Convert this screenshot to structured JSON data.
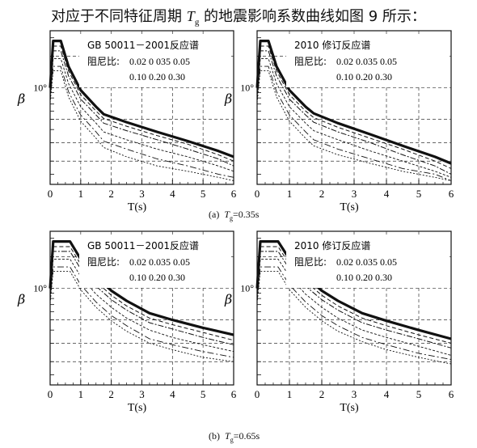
{
  "page": {
    "title_prefix": "对应于不同特征周期 ",
    "title_symbol": "T",
    "title_subscript": "g",
    "title_suffix": " 的地震影响系数曲线如图 9 所示："
  },
  "captions": [
    {
      "label": "(a)",
      "symbol": "T",
      "subscript": "g",
      "value": "=0.35s"
    },
    {
      "label": "(b)",
      "symbol": "T",
      "subscript": "g",
      "value": "=0.65s"
    }
  ],
  "chart_data": [
    {
      "type": "line",
      "legend_title": "GB 50011－2001反应谱",
      "legend_damping_label": "阻尼比:",
      "legend_damping_row1": "0.02 0 035 0.05",
      "legend_damping_row2": "0.10 0.20 0.30",
      "xlabel": "T(s)",
      "ylabel": "β",
      "y_tick_label": "10°",
      "x_ticks": [
        "0",
        "1",
        "2",
        "3",
        "4",
        "5",
        "6"
      ],
      "xlim": [
        0,
        6
      ],
      "tg": 0.35,
      "grid": true,
      "log_y": true,
      "legend_position": "top-right",
      "series": [
        {
          "damping": 0.02,
          "x": [
            0,
            0.1,
            0.35,
            0.6,
            1,
            1.5,
            1.75,
            2.5,
            3.5,
            4.5,
            5.5,
            6
          ],
          "y": [
            1.0,
            2.8,
            2.8,
            1.6,
            0.95,
            0.66,
            0.56,
            0.47,
            0.38,
            0.31,
            0.25,
            0.22
          ]
        },
        {
          "damping": 0.035,
          "x": [
            0,
            0.1,
            0.35,
            0.6,
            1,
            1.5,
            1.75,
            2.5,
            3.5,
            4.5,
            5.5,
            6
          ],
          "y": [
            0.92,
            2.5,
            2.5,
            1.45,
            0.86,
            0.6,
            0.51,
            0.43,
            0.35,
            0.29,
            0.23,
            0.2
          ]
        },
        {
          "damping": 0.05,
          "x": [
            0,
            0.1,
            0.35,
            0.6,
            1,
            1.5,
            1.75,
            2.5,
            3.5,
            4.5,
            5.5,
            6
          ],
          "y": [
            0.85,
            2.25,
            2.25,
            1.3,
            0.78,
            0.55,
            0.46,
            0.39,
            0.32,
            0.26,
            0.21,
            0.18
          ]
        },
        {
          "damping": 0.1,
          "x": [
            0,
            0.1,
            0.35,
            0.6,
            1,
            1.5,
            1.75,
            2.5,
            3.5,
            4.5,
            5.5,
            6
          ],
          "y": [
            0.8,
            1.9,
            1.9,
            1.1,
            0.66,
            0.46,
            0.38,
            0.32,
            0.26,
            0.22,
            0.18,
            0.16
          ]
        },
        {
          "damping": 0.2,
          "x": [
            0,
            0.1,
            0.35,
            0.6,
            1,
            1.5,
            1.75,
            2.5,
            3.5,
            4.5,
            5.5,
            6
          ],
          "y": [
            0.75,
            1.6,
            1.6,
            0.92,
            0.55,
            0.38,
            0.31,
            0.26,
            0.21,
            0.18,
            0.15,
            0.14
          ]
        },
        {
          "damping": 0.3,
          "x": [
            0,
            0.1,
            0.35,
            0.6,
            1,
            1.5,
            1.75,
            2.5,
            3.5,
            4.5,
            5.5,
            6
          ],
          "y": [
            0.72,
            1.45,
            1.45,
            0.82,
            0.48,
            0.33,
            0.27,
            0.22,
            0.18,
            0.16,
            0.14,
            0.13
          ]
        }
      ]
    },
    {
      "type": "line",
      "legend_title": "2010 修订反应谱",
      "legend_damping_label": "阻尼比:",
      "legend_damping_row1": "0.02 0.035 0.05",
      "legend_damping_row2": "0.10 0.20 0.30",
      "xlabel": "T(s)",
      "ylabel": "β",
      "y_tick_label": "10°",
      "x_ticks": [
        "0",
        "1",
        "2",
        "3",
        "4",
        "5",
        "6"
      ],
      "xlim": [
        0,
        6
      ],
      "tg": 0.35,
      "grid": true,
      "log_y": true,
      "legend_position": "top-right",
      "series": [
        {
          "damping": 0.02,
          "x": [
            0,
            0.1,
            0.35,
            0.6,
            1,
            1.5,
            1.75,
            2.5,
            3.5,
            4.5,
            5.5,
            6
          ],
          "y": [
            1.0,
            2.8,
            2.8,
            1.6,
            0.95,
            0.66,
            0.57,
            0.46,
            0.36,
            0.28,
            0.22,
            0.19
          ]
        },
        {
          "damping": 0.035,
          "x": [
            0,
            0.1,
            0.35,
            0.6,
            1,
            1.5,
            1.75,
            2.5,
            3.5,
            4.5,
            5.5,
            6
          ],
          "y": [
            0.92,
            2.5,
            2.5,
            1.45,
            0.86,
            0.6,
            0.52,
            0.42,
            0.33,
            0.26,
            0.2,
            0.17
          ]
        },
        {
          "damping": 0.05,
          "x": [
            0,
            0.1,
            0.35,
            0.6,
            1,
            1.5,
            1.75,
            2.5,
            3.5,
            4.5,
            5.5,
            6
          ],
          "y": [
            0.85,
            2.25,
            2.25,
            1.3,
            0.78,
            0.55,
            0.47,
            0.38,
            0.3,
            0.23,
            0.18,
            0.15
          ]
        },
        {
          "damping": 0.1,
          "x": [
            0,
            0.1,
            0.35,
            0.6,
            1,
            1.5,
            1.75,
            2.5,
            3.5,
            4.5,
            5.5,
            6
          ],
          "y": [
            0.8,
            1.9,
            1.9,
            1.1,
            0.66,
            0.46,
            0.39,
            0.32,
            0.25,
            0.2,
            0.16,
            0.14
          ]
        },
        {
          "damping": 0.2,
          "x": [
            0,
            0.1,
            0.35,
            0.6,
            1,
            1.5,
            1.75,
            2.5,
            3.5,
            4.5,
            5.5,
            6
          ],
          "y": [
            0.75,
            1.6,
            1.6,
            0.92,
            0.55,
            0.38,
            0.32,
            0.26,
            0.21,
            0.17,
            0.15,
            0.13
          ]
        },
        {
          "damping": 0.3,
          "x": [
            0,
            0.1,
            0.35,
            0.6,
            1,
            1.5,
            1.75,
            2.5,
            3.5,
            4.5,
            5.5,
            6
          ],
          "y": [
            0.72,
            1.45,
            1.45,
            0.82,
            0.48,
            0.33,
            0.28,
            0.23,
            0.19,
            0.16,
            0.14,
            0.13
          ]
        }
      ]
    },
    {
      "type": "line",
      "legend_title": "GB 50011－2001反应谱",
      "legend_damping_label": "阻尼比:",
      "legend_damping_row1": "0.02 0.035 0.05",
      "legend_damping_row2": "0.10 0.20 0.30",
      "xlabel": "T(s)",
      "ylabel": "β",
      "y_tick_label": "10°",
      "x_ticks": [
        "0",
        "1",
        "2",
        "3",
        "4",
        "5",
        "6"
      ],
      "xlim": [
        0,
        6
      ],
      "tg": 0.65,
      "grid": true,
      "log_y": true,
      "legend_position": "top-right",
      "series": [
        {
          "damping": 0.02,
          "x": [
            0,
            0.1,
            0.65,
            1,
            1.5,
            2,
            2.5,
            3.25,
            4,
            5,
            6
          ],
          "y": [
            1.0,
            2.8,
            2.8,
            1.9,
            1.3,
            0.95,
            0.76,
            0.58,
            0.5,
            0.42,
            0.36
          ]
        },
        {
          "damping": 0.035,
          "x": [
            0,
            0.1,
            0.65,
            1,
            1.5,
            2,
            2.5,
            3.25,
            4,
            5,
            6
          ],
          "y": [
            0.92,
            2.5,
            2.5,
            1.7,
            1.16,
            0.86,
            0.68,
            0.52,
            0.45,
            0.38,
            0.32
          ]
        },
        {
          "damping": 0.05,
          "x": [
            0,
            0.1,
            0.65,
            1,
            1.5,
            2,
            2.5,
            3.25,
            4,
            5,
            6
          ],
          "y": [
            0.85,
            2.25,
            2.25,
            1.53,
            1.05,
            0.78,
            0.62,
            0.47,
            0.41,
            0.34,
            0.29
          ]
        },
        {
          "damping": 0.1,
          "x": [
            0,
            0.1,
            0.65,
            1,
            1.5,
            2,
            2.5,
            3.25,
            4,
            5,
            6
          ],
          "y": [
            0.8,
            1.9,
            1.9,
            1.3,
            0.88,
            0.66,
            0.52,
            0.4,
            0.34,
            0.29,
            0.25
          ]
        },
        {
          "damping": 0.2,
          "x": [
            0,
            0.1,
            0.65,
            1,
            1.5,
            2,
            2.5,
            3.25,
            4,
            5,
            6
          ],
          "y": [
            0.75,
            1.6,
            1.6,
            1.08,
            0.74,
            0.55,
            0.44,
            0.33,
            0.29,
            0.25,
            0.22
          ]
        },
        {
          "damping": 0.3,
          "x": [
            0,
            0.1,
            0.65,
            1,
            1.5,
            2,
            2.5,
            3.25,
            4,
            5,
            6
          ],
          "y": [
            0.72,
            1.45,
            1.45,
            0.97,
            0.66,
            0.49,
            0.39,
            0.3,
            0.26,
            0.22,
            0.2
          ]
        }
      ]
    },
    {
      "type": "line",
      "legend_title": "2010 修订反应谱",
      "legend_damping_label": "阻尼比:",
      "legend_damping_row1": "0.02 0.035 0.05",
      "legend_damping_row2": "0.10 0.20 0.30",
      "xlabel": "T(s)",
      "ylabel": "β",
      "y_tick_label": "10°",
      "x_ticks": [
        "0",
        "1",
        "2",
        "3",
        "4",
        "5",
        "6"
      ],
      "xlim": [
        0,
        6
      ],
      "tg": 0.65,
      "grid": true,
      "log_y": true,
      "legend_position": "top-right",
      "series": [
        {
          "damping": 0.02,
          "x": [
            0,
            0.1,
            0.65,
            1,
            1.5,
            2,
            2.5,
            3.25,
            4,
            5,
            6
          ],
          "y": [
            1.0,
            2.8,
            2.8,
            1.9,
            1.3,
            0.95,
            0.76,
            0.58,
            0.49,
            0.4,
            0.33
          ]
        },
        {
          "damping": 0.035,
          "x": [
            0,
            0.1,
            0.65,
            1,
            1.5,
            2,
            2.5,
            3.25,
            4,
            5,
            6
          ],
          "y": [
            0.92,
            2.5,
            2.5,
            1.7,
            1.16,
            0.86,
            0.68,
            0.52,
            0.44,
            0.36,
            0.3
          ]
        },
        {
          "damping": 0.05,
          "x": [
            0,
            0.1,
            0.65,
            1,
            1.5,
            2,
            2.5,
            3.25,
            4,
            5,
            6
          ],
          "y": [
            0.85,
            2.25,
            2.25,
            1.53,
            1.05,
            0.78,
            0.62,
            0.47,
            0.4,
            0.33,
            0.27
          ]
        },
        {
          "damping": 0.1,
          "x": [
            0,
            0.1,
            0.65,
            1,
            1.5,
            2,
            2.5,
            3.25,
            4,
            5,
            6
          ],
          "y": [
            0.8,
            1.9,
            1.9,
            1.3,
            0.88,
            0.66,
            0.52,
            0.4,
            0.34,
            0.28,
            0.23
          ]
        },
        {
          "damping": 0.2,
          "x": [
            0,
            0.1,
            0.65,
            1,
            1.5,
            2,
            2.5,
            3.25,
            4,
            5,
            6
          ],
          "y": [
            0.75,
            1.6,
            1.6,
            1.08,
            0.74,
            0.55,
            0.44,
            0.34,
            0.29,
            0.24,
            0.21
          ]
        },
        {
          "damping": 0.3,
          "x": [
            0,
            0.1,
            0.65,
            1,
            1.5,
            2,
            2.5,
            3.25,
            4,
            5,
            6
          ],
          "y": [
            0.72,
            1.45,
            1.45,
            0.97,
            0.66,
            0.49,
            0.39,
            0.31,
            0.26,
            0.22,
            0.19
          ]
        }
      ]
    }
  ]
}
